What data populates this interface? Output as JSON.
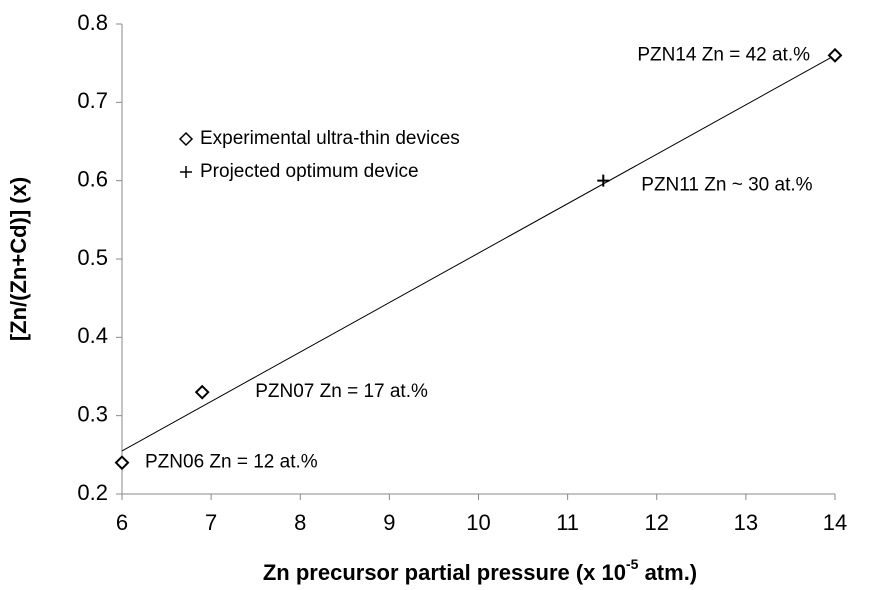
{
  "chart_data": {
    "type": "scatter",
    "x_label": [
      "Zn precursor partial pressure (x 10",
      "-5",
      " atm.)"
    ],
    "y_label": "[Zn/(Zn+Cd)] (x)",
    "xlim": [
      6,
      14
    ],
    "xticks": [
      6,
      7,
      8,
      9,
      10,
      11,
      12,
      13,
      14
    ],
    "ylim": [
      0.2,
      0.8
    ],
    "yticks": [
      0.2,
      0.3,
      0.4,
      0.5,
      0.6,
      0.7,
      0.8
    ],
    "grid": false,
    "series": [
      {
        "name": "Experimental ultra-thin devices",
        "marker": "diamond",
        "color": "#000000",
        "x": [
          6,
          6.9,
          14
        ],
        "values": [
          0.24,
          0.33,
          0.76
        ],
        "point_labels": [
          "PZN06 Zn = 12 at.%",
          "PZN07 Zn = 17 at.%",
          "PZN14 Zn = 42 at.%"
        ]
      },
      {
        "name": "Projected optimum device",
        "marker": "plus",
        "color": "#000000",
        "x": [
          11.4
        ],
        "values": [
          0.6
        ],
        "point_labels": [
          "PZN11 Zn ~ 30 at.%"
        ]
      }
    ],
    "trendline": {
      "x": [
        6,
        14
      ],
      "values": [
        0.255,
        0.76
      ]
    }
  }
}
